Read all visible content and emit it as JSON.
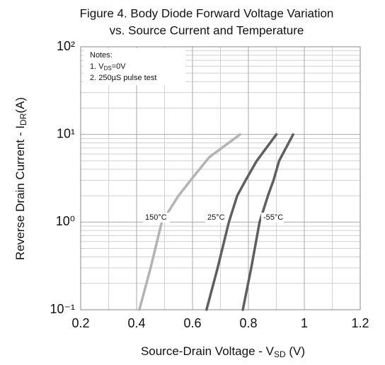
{
  "chart_data": {
    "type": "line",
    "title": [
      "Figure 4. Body Diode Forward Voltage Variation",
      "vs. Source Current and Temperature"
    ],
    "xlabel": {
      "text": "Source-Drain Voltage - V",
      "sub": "SD",
      "tail": " (V)"
    },
    "ylabel": {
      "text": "Reverse Drain Current - I",
      "sub": "DR",
      "tail": "(A)"
    },
    "notes": [
      {
        "text": "Notes:"
      },
      {
        "text": "1. V",
        "sub": "DS",
        "tail": "=0V"
      },
      {
        "text": "2. 250µS pulse test"
      }
    ],
    "xlim": [
      0.2,
      1.2
    ],
    "xticks": [
      0.2,
      0.4,
      0.6,
      0.8,
      1,
      1.2
    ],
    "ylim": [
      0.1,
      100
    ],
    "yticks": [
      {
        "value": 0.1,
        "label": "10⁻¹"
      },
      {
        "value": 1,
        "label": "10⁰"
      },
      {
        "value": 10,
        "label": "10¹"
      },
      {
        "value": 100,
        "label": "10²"
      }
    ],
    "ylog": true,
    "grid": true,
    "series": [
      {
        "name": "150°C",
        "color": "#b3b3b3",
        "x": [
          0.41,
          0.45,
          0.49,
          0.55,
          0.6,
          0.66,
          0.77
        ],
        "values": [
          0.1,
          0.3,
          1,
          2,
          3.2,
          5.5,
          10
        ]
      },
      {
        "name": "25°C",
        "color": "#5f5f5f",
        "x": [
          0.65,
          0.69,
          0.73,
          0.76,
          0.79,
          0.83,
          0.9
        ],
        "values": [
          0.1,
          0.3,
          1,
          2,
          3,
          5,
          10
        ]
      },
      {
        "name": "-55°C",
        "color": "#5f5f5f",
        "x": [
          0.78,
          0.81,
          0.84,
          0.87,
          0.89,
          0.91,
          0.96
        ],
        "values": [
          0.1,
          0.3,
          1,
          2,
          3,
          5,
          10
        ]
      }
    ]
  }
}
